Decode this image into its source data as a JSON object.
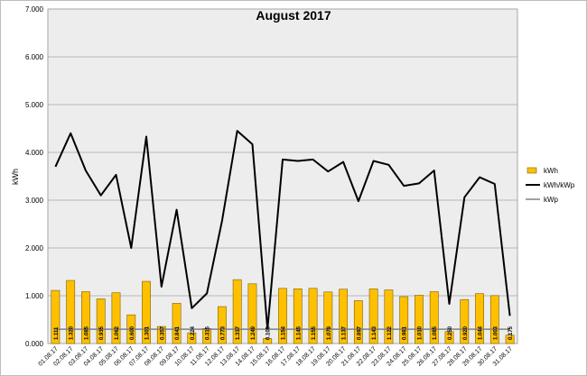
{
  "chart_data": {
    "type": "bar",
    "title": "August 2017",
    "ylabel": "kWh",
    "ylim": [
      0,
      7
    ],
    "yticks": [
      "0.000",
      "1.000",
      "2.000",
      "3.000",
      "4.000",
      "5.000",
      "6.000",
      "7.000"
    ],
    "grid": true,
    "legend_position": "right",
    "categories": [
      "01.08.17",
      "02.08.17",
      "03.08.17",
      "04.08.17",
      "05.08.17",
      "06.08.17",
      "07.08.17",
      "08.08.17",
      "09.08.17",
      "10.08.17",
      "11.08.17",
      "12.08.17",
      "13.08.17",
      "14.08.17",
      "15.08.17",
      "16.08.17",
      "17.08.17",
      "18.08.17",
      "19.08.17",
      "20.08.17",
      "21.08.17",
      "22.08.17",
      "23.08.17",
      "24.08.17",
      "25.08.17",
      "26.08.17",
      "27.08.17",
      "28.08.17",
      "29.08.17",
      "30.08.17",
      "31.08.17"
    ],
    "series": [
      {
        "name": "kWh",
        "type": "bar",
        "color": "#ffc000",
        "values": [
          1.111,
          1.32,
          1.085,
          0.935,
          1.062,
          0.6,
          1.301,
          0.357,
          0.841,
          0.224,
          0.315,
          0.773,
          1.337,
          1.249,
          0.105,
          1.154,
          1.145,
          1.155,
          1.079,
          1.137,
          0.897,
          1.143,
          1.122,
          0.981,
          1.01,
          1.085,
          0.25,
          0.92,
          1.044,
          1.003,
          0.175
        ],
        "labels": [
          "1.111",
          "1.320",
          "1.085",
          "0.935",
          "1.062",
          "0.600",
          "1.301",
          "0.357",
          "0.841",
          "0.224",
          "0.315",
          "0.773",
          "1.337",
          "1.249",
          "0.105",
          "1.154",
          "1.145",
          "1.155",
          "1.079",
          "1.137",
          "0.897",
          "1.143",
          "1.122",
          "0.981",
          "1.010",
          "1.085",
          "0.250",
          "0.920",
          "1.044",
          "1.003",
          "0.175"
        ]
      },
      {
        "name": "kWh/kWp",
        "type": "line",
        "color": "#000000",
        "values": [
          3.7,
          4.4,
          3.62,
          3.1,
          3.53,
          2.0,
          4.33,
          1.19,
          2.8,
          0.74,
          1.05,
          2.57,
          4.45,
          4.17,
          0.3,
          3.85,
          3.82,
          3.85,
          3.6,
          3.8,
          2.98,
          3.82,
          3.74,
          3.3,
          3.35,
          3.62,
          0.83,
          3.06,
          3.48,
          3.34,
          0.58
        ]
      },
      {
        "name": "kWp",
        "type": "line",
        "color": "#808080",
        "values": [
          0.3,
          0.3,
          0.3,
          0.3,
          0.3,
          0.3,
          0.3,
          0.3,
          0.3,
          0.3,
          0.3,
          0.3,
          0.3,
          0.3,
          0.3,
          0.3,
          0.3,
          0.3,
          0.3,
          0.3,
          0.3,
          0.3,
          0.3,
          0.3,
          0.3,
          0.3,
          0.3,
          0.3,
          0.3,
          0.3,
          0.3
        ]
      }
    ]
  }
}
